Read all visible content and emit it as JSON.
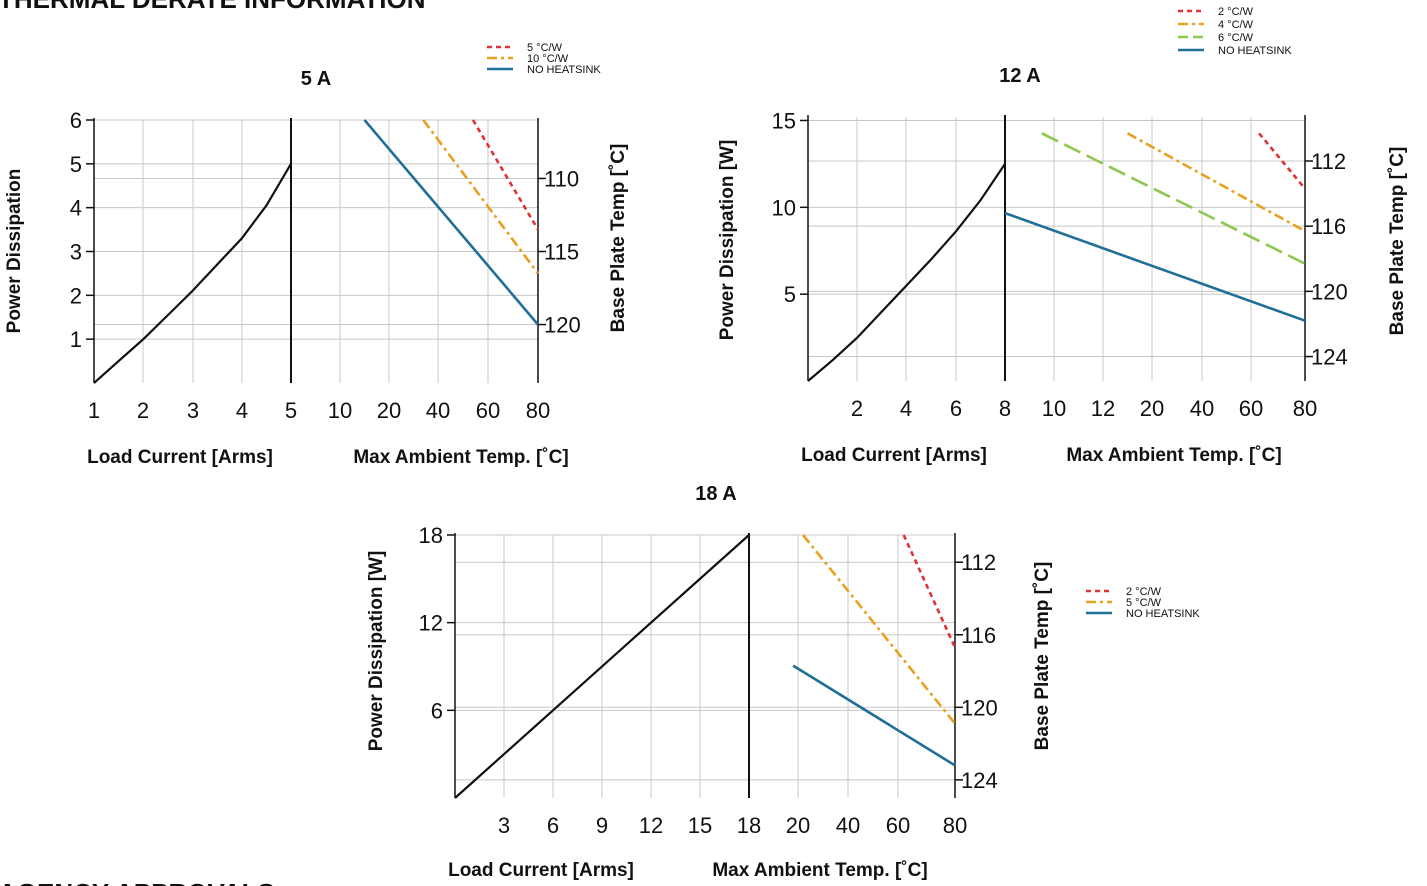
{
  "page": {
    "section_title": "THERMAL DERATE INFORMATION",
    "footer_title": "AGENCY APPROVALS"
  },
  "colors": {
    "red": "#e03232",
    "orange": "#e8a020",
    "green": "#8cc84b",
    "blue": "#1f6f96",
    "black": "#111111"
  },
  "chart_data": [
    {
      "id": "5A",
      "type": "line",
      "title": "5 A",
      "left": {
        "xlabel": "Load Current [Arms]",
        "ylabel": "Power Dissipation",
        "x_ticks": [
          "1",
          "2",
          "3",
          "4",
          "5"
        ],
        "y_ticks": [
          "1",
          "2",
          "3",
          "4",
          "5",
          "6"
        ],
        "xlim": [
          1,
          5
        ],
        "ylim": [
          0,
          6
        ],
        "curve": {
          "x": [
            1,
            1.5,
            2,
            2.5,
            3,
            3.5,
            4,
            4.5,
            5
          ],
          "y": [
            0,
            0.5,
            1.0,
            1.55,
            2.1,
            2.7,
            3.3,
            4.05,
            5.0
          ]
        }
      },
      "right": {
        "xlabel": "Max Ambient Temp. [˚C]",
        "ylabel": "Base Plate Temp [˚C]",
        "x_ticks": [
          "10",
          "20",
          "40",
          "60",
          "80"
        ],
        "y_ticks": [
          "110",
          "115",
          "120"
        ],
        "ylim": [
          106,
          124
        ],
        "series": [
          {
            "name": "5 °C/W",
            "style": "dashed",
            "color": "red",
            "x": [
              54,
              80
            ],
            "y": [
              106,
              113.5
            ]
          },
          {
            "name": "10 °C/W",
            "style": "dashdot",
            "color": "orange",
            "x": [
              34,
              80
            ],
            "y": [
              106,
              116.5
            ]
          },
          {
            "name": "NO HEATSINK",
            "style": "solid",
            "color": "blue",
            "x": [
              15,
              80
            ],
            "y": [
              106,
              120
            ]
          }
        ]
      }
    },
    {
      "id": "12A",
      "type": "line",
      "title": "12 A",
      "left": {
        "xlabel": "Load Current [Arms]",
        "ylabel": "Power Dissipation [W]",
        "x_ticks": [
          "2",
          "4",
          "6",
          "8"
        ],
        "y_ticks": [
          "5",
          "10",
          "15"
        ],
        "xlim": [
          0,
          8
        ],
        "ylim": [
          0,
          15.2
        ],
        "curve": {
          "x": [
            0,
            1,
            2,
            3,
            4,
            5,
            6,
            7,
            8
          ],
          "y": [
            0,
            1.2,
            2.5,
            4.0,
            5.5,
            7.0,
            8.6,
            10.4,
            12.5
          ]
        }
      },
      "right": {
        "xlabel": "Max Ambient Temp. [˚C]",
        "ylabel": "Base Plate Temp [˚C]",
        "x_ticks": [
          "10",
          "12",
          "20",
          "40",
          "60",
          "80"
        ],
        "y_ticks": [
          "112",
          "116",
          "120",
          "124"
        ],
        "ylim": [
          109.3,
          125.5
        ],
        "series": [
          {
            "name": "2 °C/W",
            "style": "dashed",
            "color": "red",
            "x": [
              63,
              80
            ],
            "y": [
              110.3,
              113.7
            ]
          },
          {
            "name": "4 °C/W",
            "style": "dashdot",
            "color": "orange",
            "x": [
              16,
              80
            ],
            "y": [
              110.3,
              116.3
            ]
          },
          {
            "name": "6 °C/W",
            "style": "longdash",
            "color": "green",
            "x": [
              9.5,
              80
            ],
            "y": [
              110.3,
              118.3
            ]
          },
          {
            "name": "NO HEATSINK",
            "style": "solid",
            "color": "blue",
            "x": [
              8,
              80
            ],
            "y": [
              115.2,
              121.8
            ]
          }
        ]
      }
    },
    {
      "id": "18A",
      "type": "line",
      "title": "18 A",
      "left": {
        "xlabel": "Load Current [Arms]",
        "ylabel": "Power Dissipation [W]",
        "x_ticks": [
          "3",
          "6",
          "9",
          "12",
          "15",
          "18"
        ],
        "y_ticks": [
          "6",
          "12",
          "18"
        ],
        "xlim": [
          0,
          18
        ],
        "ylim": [
          0,
          18
        ],
        "curve": {
          "x": [
            0,
            18
          ],
          "y": [
            0,
            18
          ]
        }
      },
      "right": {
        "xlabel": "Max Ambient Temp. [˚C]",
        "ylabel": "Base Plate Temp [˚C]",
        "x_ticks": [
          "20",
          "40",
          "60",
          "80"
        ],
        "y_ticks": [
          "112",
          "116",
          "120",
          "124"
        ],
        "ylim": [
          110.5,
          125
        ],
        "series": [
          {
            "name": "2 °C/W",
            "style": "dashed",
            "color": "red",
            "x": [
              62,
              80
            ],
            "y": [
              110.5,
              116.7
            ]
          },
          {
            "name": "5 °C/W",
            "style": "dashdot",
            "color": "orange",
            "x": [
              22,
              80
            ],
            "y": [
              110.5,
              120.9
            ]
          },
          {
            "name": "NO HEATSINK",
            "style": "solid",
            "color": "blue",
            "x": [
              18,
              80
            ],
            "y": [
              117.7,
              123.2
            ]
          }
        ]
      }
    }
  ]
}
